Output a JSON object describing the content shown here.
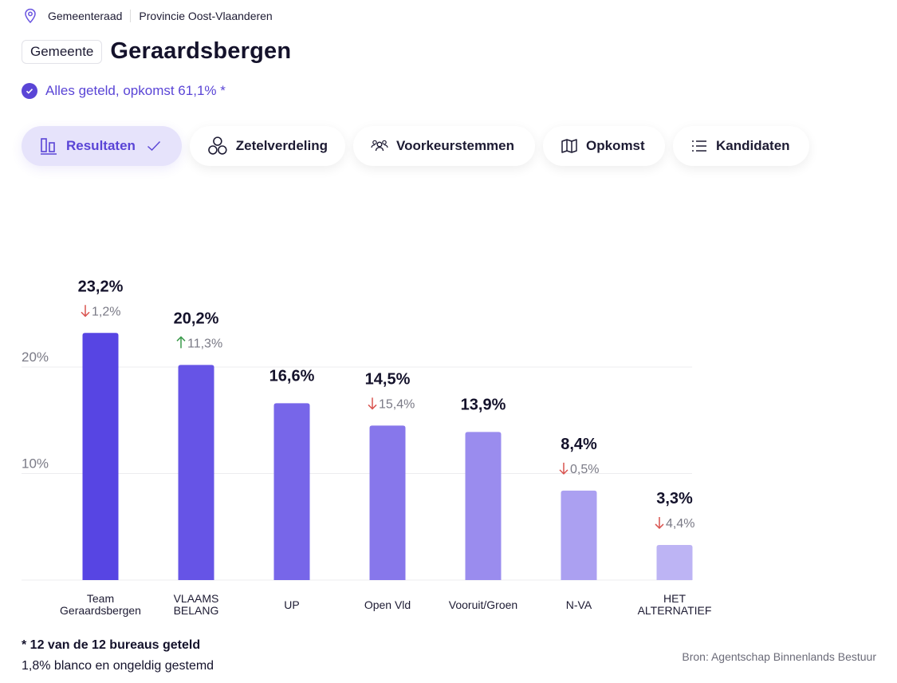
{
  "breadcrumb": {
    "icon": "map-pin-icon",
    "items": [
      "Gemeenteraad",
      "Provincie Oost-Vlaanderen"
    ]
  },
  "header": {
    "badge": "Gemeente",
    "title": "Geraardsbergen"
  },
  "status": {
    "icon": "check-circle-icon",
    "text": "Alles geteld, opkomst 61,1% *"
  },
  "tabs": [
    {
      "label": "Resultaten",
      "icon": "bar-chart-icon",
      "active": true
    },
    {
      "label": "Zetelverdeling",
      "icon": "seat-circles-icon",
      "active": false
    },
    {
      "label": "Voorkeurstemmen",
      "icon": "people-icon",
      "active": false
    },
    {
      "label": "Opkomst",
      "icon": "map-icon",
      "active": false
    },
    {
      "label": "Kandidaten",
      "icon": "list-icon",
      "active": false
    }
  ],
  "colors": {
    "accent": "#5a45d6",
    "down": "#d9534f",
    "up": "#3a9a4a",
    "bars": [
      "#5745e3",
      "#6654e6",
      "#7766e9",
      "#8777eb",
      "#9a8cee",
      "#aba0f1",
      "#bdb4f4"
    ]
  },
  "chart_data": {
    "type": "bar",
    "title": "",
    "xlabel": "",
    "ylabel": "",
    "ylim": [
      0,
      26
    ],
    "yticks": [
      {
        "value": 10,
        "label": "10%"
      },
      {
        "value": 20,
        "label": "20%"
      }
    ],
    "grid": true,
    "categories": [
      [
        "Team",
        "Geraardsbergen"
      ],
      [
        "VLAAMS",
        "BELANG"
      ],
      [
        "UP"
      ],
      [
        "Open Vld"
      ],
      [
        "Vooruit/Groen"
      ],
      [
        "N-VA"
      ],
      [
        "HET",
        "ALTERNATIEF"
      ]
    ],
    "values": [
      23.2,
      20.2,
      16.6,
      14.5,
      13.9,
      8.4,
      3.3
    ],
    "value_labels": [
      "23,2%",
      "20,2%",
      "16,6%",
      "14,5%",
      "13,9%",
      "8,4%",
      "3,3%"
    ],
    "changes": [
      {
        "direction": "down",
        "label": "1,2%"
      },
      {
        "direction": "up",
        "label": "11,3%"
      },
      null,
      {
        "direction": "down",
        "label": "15,4%"
      },
      null,
      {
        "direction": "down",
        "label": "0,5%"
      },
      {
        "direction": "down",
        "label": "4,4%"
      }
    ]
  },
  "footer": {
    "note": "* 12 van de 12 bureaus geteld",
    "blank": "1,8% blanco en ongeldig gestemd",
    "source": "Bron: Agentschap Binnenlands Bestuur"
  }
}
